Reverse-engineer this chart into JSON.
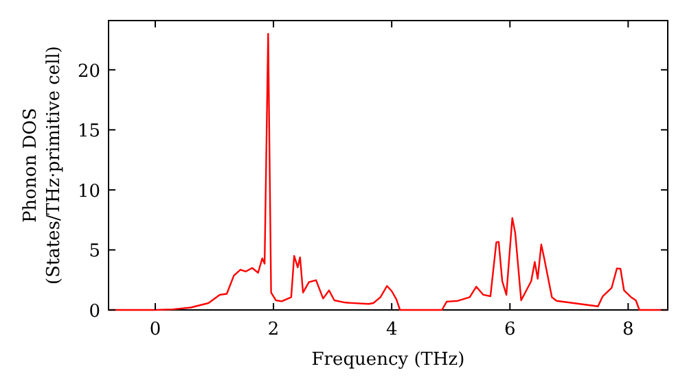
{
  "chart_data": {
    "type": "line",
    "xlabel": "Frequency (THz)",
    "ylabel": "Phonon DOS\n(States/THz·primitive cell)",
    "xlim": [
      -0.79,
      8.67
    ],
    "ylim": [
      0,
      24.1
    ],
    "xticks": [
      0,
      2,
      4,
      6,
      8
    ],
    "yticks": [
      0,
      5,
      10,
      15,
      20
    ],
    "grid": false,
    "series": [
      {
        "color": "#ff0000",
        "x": [
          -0.79,
          0,
          0.3,
          0.6,
          0.9,
          1.09,
          1.21,
          1.33,
          1.44,
          1.53,
          1.64,
          1.74,
          1.81,
          1.85,
          1.91,
          1.96,
          2.04,
          2.14,
          2.3,
          2.35,
          2.41,
          2.45,
          2.5,
          2.6,
          2.72,
          2.84,
          2.94,
          3.03,
          3.22,
          3.61,
          3.69,
          3.81,
          3.92,
          4.0,
          4.08,
          4.14,
          4.85,
          4.93,
          5.12,
          5.32,
          5.43,
          5.55,
          5.67,
          5.77,
          5.81,
          5.87,
          5.94,
          6.04,
          6.09,
          6.19,
          6.36,
          6.42,
          6.47,
          6.53,
          6.58,
          6.71,
          6.79,
          7.49,
          7.57,
          7.72,
          7.81,
          7.87,
          7.93,
          8.05,
          8.13,
          8.19,
          8.67
        ],
        "values": [
          0,
          0,
          0.05,
          0.2,
          0.57,
          1.26,
          1.34,
          2.86,
          3.35,
          3.2,
          3.5,
          3.1,
          4.3,
          3.85,
          23.0,
          1.45,
          0.8,
          0.72,
          1.06,
          4.5,
          3.55,
          4.38,
          1.45,
          2.32,
          2.48,
          0.95,
          1.63,
          0.8,
          0.61,
          0.5,
          0.57,
          1.06,
          2.0,
          1.57,
          0.88,
          0,
          0,
          0.69,
          0.76,
          1.06,
          1.94,
          1.26,
          1.14,
          5.63,
          5.67,
          2.4,
          1.26,
          7.66,
          6.4,
          0.8,
          2.4,
          4.0,
          2.6,
          5.45,
          4.3,
          1.06,
          0.76,
          0.3,
          1.14,
          1.83,
          3.46,
          3.43,
          1.63,
          1.06,
          0.8,
          0,
          0
        ]
      }
    ]
  }
}
